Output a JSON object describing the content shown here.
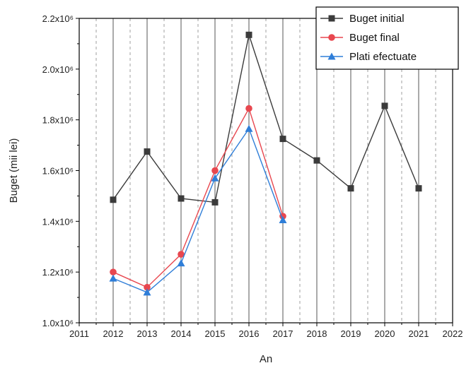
{
  "chart_data": {
    "type": "line",
    "xlabel": "An",
    "ylabel": "Buget (mii lei)",
    "xlim": [
      2011,
      2022
    ],
    "ylim": [
      1000000,
      2200000
    ],
    "x_ticks": [
      2011,
      2012,
      2013,
      2014,
      2015,
      2016,
      2017,
      2018,
      2019,
      2020,
      2021,
      2022
    ],
    "x_tick_labels": [
      "2011",
      "2012",
      "2013",
      "2014",
      "2015",
      "2016",
      "2017",
      "2018",
      "2019",
      "2020",
      "2021",
      "2022"
    ],
    "y_ticks": [
      1000000,
      1200000,
      1400000,
      1600000,
      1800000,
      2000000,
      2200000
    ],
    "y_tick_labels": [
      "1.0x10⁶",
      "1.2x10⁶",
      "1.4x10⁶",
      "1.6x10⁶",
      "1.8x10⁶",
      "2.0x10⁶",
      "2.2x10⁶"
    ],
    "grid": "vertical major solid, minor dashed",
    "legend_position": "top-right",
    "series": [
      {
        "name": "Buget initial",
        "color": "#3b3b3b",
        "marker": "square",
        "x": [
          2012,
          2013,
          2014,
          2015,
          2016,
          2017,
          2018,
          2019,
          2020,
          2021
        ],
        "values": [
          1485000,
          1675000,
          1490000,
          1475000,
          2135000,
          1725000,
          1640000,
          1530000,
          1855000,
          1530000
        ]
      },
      {
        "name": "Buget final",
        "color": "#e8474f",
        "marker": "circle",
        "x": [
          2012,
          2013,
          2014,
          2015,
          2016,
          2017
        ],
        "values": [
          1200000,
          1140000,
          1270000,
          1600000,
          1845000,
          1420000
        ]
      },
      {
        "name": "Plati efectuate",
        "color": "#2f7ed8",
        "marker": "triangle",
        "x": [
          2012,
          2013,
          2014,
          2015,
          2016,
          2017
        ],
        "values": [
          1175000,
          1120000,
          1235000,
          1570000,
          1765000,
          1405000
        ]
      }
    ]
  }
}
